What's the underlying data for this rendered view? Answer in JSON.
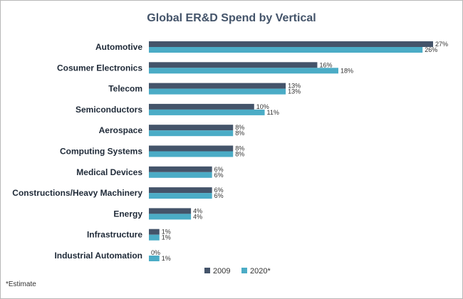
{
  "chart_data": {
    "type": "bar",
    "orientation": "horizontal",
    "title": "Global ER&D Spend by Vertical",
    "categories": [
      "Automotive",
      "Cosumer Electronics",
      "Telecom",
      "Semiconductors",
      "Aerospace",
      "Computing Systems",
      "Medical Devices",
      "Constructions/Heavy Machinery",
      "Energy",
      "Infrastructure",
      "Industrial Automation"
    ],
    "series": [
      {
        "name": "2009",
        "color": "#44546a",
        "values": [
          27,
          16,
          13,
          10,
          8,
          8,
          6,
          6,
          4,
          1,
          0
        ],
        "labels": [
          "27%",
          "16%",
          "13%",
          "10%",
          "8%",
          "8%",
          "6%",
          "6%",
          "4%",
          "1%",
          "0%"
        ]
      },
      {
        "name": "2020*",
        "color": "#4bacc6",
        "values": [
          26,
          18,
          13,
          11,
          8,
          8,
          6,
          6,
          4,
          1,
          1
        ],
        "labels": [
          "26%",
          "18%",
          "13%",
          "11%",
          "8%",
          "8%",
          "6%",
          "6%",
          "4%",
          "1%",
          "1%"
        ]
      }
    ],
    "xlim": [
      0,
      27
    ],
    "legend_position": "bottom",
    "footnote": "*Estimate"
  }
}
